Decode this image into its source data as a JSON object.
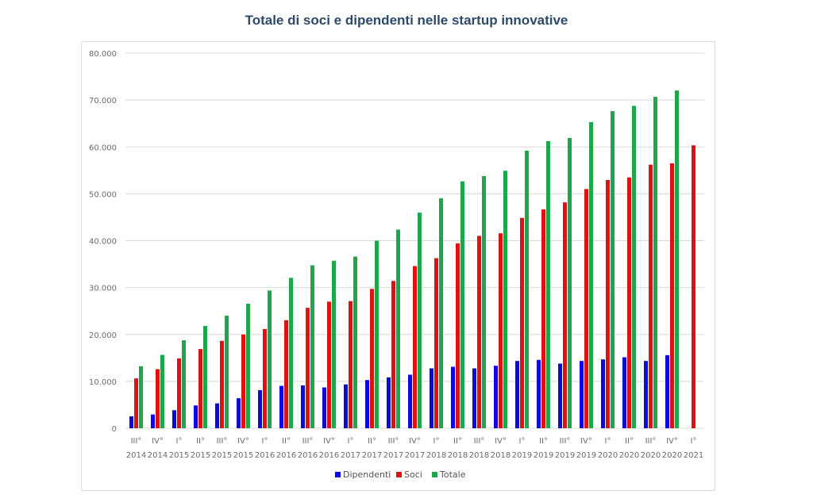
{
  "chart_data": {
    "type": "bar",
    "title": "Totale di soci e dipendenti nelle startup innovative",
    "xlabel": "",
    "ylabel": "",
    "ylim": [
      0,
      80000
    ],
    "yticks": [
      0,
      10000,
      20000,
      30000,
      40000,
      50000,
      60000,
      70000,
      80000
    ],
    "ytick_labels": [
      "0",
      "10.000",
      "20.000",
      "30.000",
      "40.000",
      "50.000",
      "60.000",
      "70.000",
      "80.000"
    ],
    "grid": true,
    "legend_position": "bottom",
    "categories": [
      {
        "quarter": "III°",
        "year": "2014"
      },
      {
        "quarter": "IV°",
        "year": "2014"
      },
      {
        "quarter": "I°",
        "year": "2015"
      },
      {
        "quarter": "II°",
        "year": "2015"
      },
      {
        "quarter": "III°",
        "year": "2015"
      },
      {
        "quarter": "IV°",
        "year": "2015"
      },
      {
        "quarter": "I°",
        "year": "2016"
      },
      {
        "quarter": "II°",
        "year": "2016"
      },
      {
        "quarter": "III°",
        "year": "2016"
      },
      {
        "quarter": "IV°",
        "year": "2016"
      },
      {
        "quarter": "I°",
        "year": "2017"
      },
      {
        "quarter": "II°",
        "year": "2017"
      },
      {
        "quarter": "III°",
        "year": "2017"
      },
      {
        "quarter": "IV°",
        "year": "2017"
      },
      {
        "quarter": "I°",
        "year": "2018"
      },
      {
        "quarter": "II°",
        "year": "2018"
      },
      {
        "quarter": "III°",
        "year": "2018"
      },
      {
        "quarter": "IV°",
        "year": "2018"
      },
      {
        "quarter": "I°",
        "year": "2019"
      },
      {
        "quarter": "II°",
        "year": "2019"
      },
      {
        "quarter": "III°",
        "year": "2019"
      },
      {
        "quarter": "IV°",
        "year": "2019"
      },
      {
        "quarter": "I°",
        "year": "2020"
      },
      {
        "quarter": "II°",
        "year": "2020"
      },
      {
        "quarter": "III°",
        "year": "2020"
      },
      {
        "quarter": "IV°",
        "year": "2020"
      },
      {
        "quarter": "I°",
        "year": "2021"
      }
    ],
    "series": [
      {
        "name": "Dipendenti",
        "color": "#0a0adc",
        "values": [
          2540,
          2930,
          3840,
          4860,
          5300,
          6400,
          8130,
          9040,
          9150,
          8700,
          9350,
          10280,
          10850,
          11410,
          12770,
          13110,
          12770,
          13330,
          14350,
          14580,
          13790,
          14350,
          14690,
          15140,
          14350,
          15590,
          null
        ]
      },
      {
        "name": "Soci",
        "color": "#e01010",
        "values": [
          10630,
          12600,
          14900,
          16900,
          18640,
          20000,
          21160,
          23050,
          25680,
          27000,
          27120,
          29720,
          31410,
          34580,
          36270,
          39440,
          41020,
          41580,
          44860,
          46670,
          48170,
          51020,
          52940,
          53500,
          56220,
          56500,
          60340
        ]
      },
      {
        "name": "Totale",
        "color": "#1ea64b",
        "values": [
          13220,
          15650,
          18760,
          21810,
          24010,
          26560,
          29370,
          32090,
          34750,
          35710,
          36610,
          40000,
          42370,
          45980,
          49030,
          52660,
          53780,
          54920,
          59200,
          61240,
          61920,
          65310,
          67630,
          68760,
          70680,
          72030,
          null
        ]
      }
    ]
  }
}
